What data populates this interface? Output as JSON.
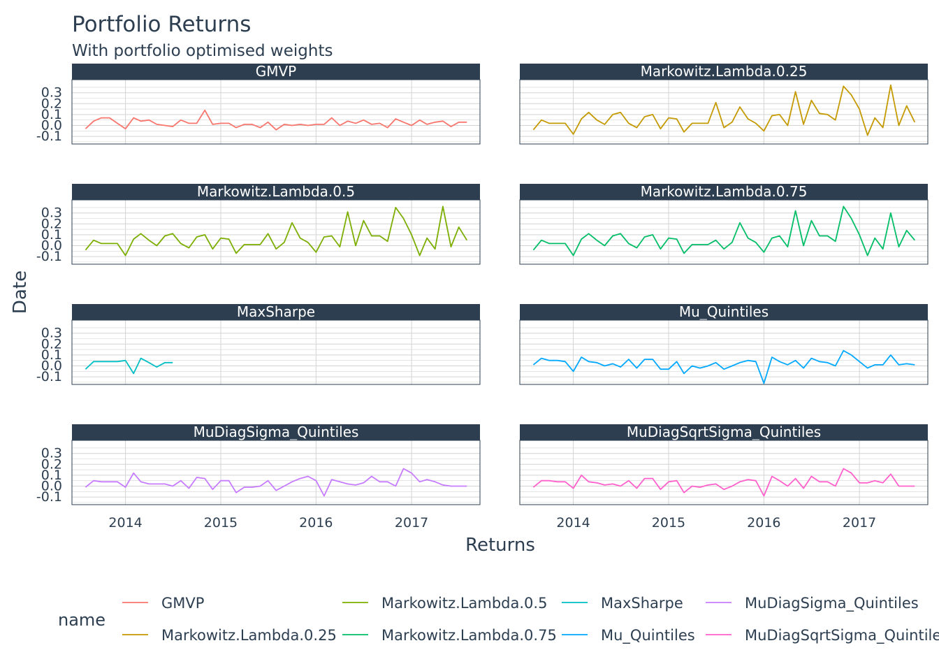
{
  "chart_data": {
    "type": "line",
    "title": "Portfolio Returns",
    "subtitle": "With portfolio optimised weights",
    "xlabel": "Returns",
    "ylabel": "Date",
    "xlim": [
      "2013-06-10",
      "2017-09-20"
    ],
    "ylim": [
      -0.17,
      0.42
    ],
    "x_ticks": [
      "2014",
      "2015",
      "2016",
      "2017"
    ],
    "y_ticks": [
      "0.3",
      "0.2",
      "0.1",
      "0.0",
      "-0.1"
    ],
    "y_tick_values": [
      0.3,
      0.2,
      0.1,
      0.0,
      -0.1
    ],
    "grid": true,
    "legend_title": "name",
    "legend_position": "bottom",
    "x": [
      "2013-08",
      "2013-09",
      "2013-10",
      "2013-11",
      "2013-12",
      "2014-01",
      "2014-02",
      "2014-03",
      "2014-04",
      "2014-05",
      "2014-06",
      "2014-07",
      "2014-08",
      "2014-09",
      "2014-10",
      "2014-11",
      "2014-12",
      "2015-01",
      "2015-02",
      "2015-03",
      "2015-04",
      "2015-05",
      "2015-06",
      "2015-07",
      "2015-08",
      "2015-09",
      "2015-10",
      "2015-11",
      "2015-12",
      "2016-01",
      "2016-02",
      "2016-03",
      "2016-04",
      "2016-05",
      "2016-06",
      "2016-07",
      "2016-08",
      "2016-09",
      "2016-10",
      "2016-11",
      "2016-12",
      "2017-01",
      "2017-02",
      "2017-03",
      "2017-04",
      "2017-05",
      "2017-06",
      "2017-07",
      "2017-08"
    ],
    "series": [
      {
        "name": "GMVP",
        "color": "#F8766D",
        "panel": 0,
        "values": [
          -0.03,
          0.04,
          0.07,
          0.07,
          0.02,
          -0.03,
          0.07,
          0.04,
          0.05,
          0.01,
          0.0,
          -0.01,
          0.05,
          0.02,
          0.02,
          0.14,
          0.01,
          0.02,
          0.02,
          -0.02,
          0.01,
          0.01,
          -0.02,
          0.03,
          -0.04,
          0.01,
          0.0,
          0.01,
          0.0,
          0.01,
          0.01,
          0.07,
          0.0,
          0.04,
          0.02,
          0.05,
          0.01,
          0.02,
          -0.02,
          0.06,
          0.03,
          0.0,
          0.05,
          0.01,
          0.03,
          0.04,
          -0.01,
          0.03,
          0.03
        ]
      },
      {
        "name": "Markowitz.Lambda.0.25",
        "color": "#C49A00",
        "panel": 1,
        "values": [
          -0.04,
          0.05,
          0.02,
          0.02,
          0.02,
          -0.08,
          0.06,
          0.12,
          0.05,
          0.01,
          0.1,
          0.12,
          0.02,
          -0.02,
          0.08,
          0.1,
          -0.03,
          0.07,
          0.06,
          -0.06,
          0.02,
          0.02,
          0.02,
          0.21,
          -0.02,
          0.03,
          0.17,
          0.06,
          0.02,
          -0.05,
          0.09,
          0.1,
          0.0,
          0.31,
          0.01,
          0.23,
          0.11,
          0.1,
          0.05,
          0.36,
          0.28,
          0.15,
          -0.09,
          0.07,
          -0.02,
          0.37,
          0.0,
          0.18,
          0.03
        ]
      },
      {
        "name": "Markowitz.Lambda.0.5",
        "color": "#7CAE00",
        "panel": 2,
        "values": [
          -0.04,
          0.05,
          0.02,
          0.02,
          0.02,
          -0.09,
          0.06,
          0.11,
          0.05,
          0.0,
          0.09,
          0.11,
          0.02,
          -0.02,
          0.08,
          0.1,
          -0.03,
          0.07,
          0.06,
          -0.07,
          0.01,
          0.01,
          0.01,
          0.11,
          -0.03,
          0.03,
          0.21,
          0.07,
          0.03,
          -0.06,
          0.08,
          0.09,
          -0.01,
          0.31,
          0.0,
          0.23,
          0.09,
          0.09,
          0.04,
          0.35,
          0.25,
          0.1,
          -0.09,
          0.07,
          -0.03,
          0.36,
          -0.01,
          0.17,
          0.05
        ]
      },
      {
        "name": "Markowitz.Lambda.0.75",
        "color": "#00BE67",
        "panel": 3,
        "values": [
          -0.04,
          0.05,
          0.02,
          0.02,
          0.02,
          -0.09,
          0.06,
          0.11,
          0.05,
          0.0,
          0.09,
          0.11,
          0.02,
          -0.02,
          0.08,
          0.1,
          -0.03,
          0.07,
          0.06,
          -0.07,
          0.01,
          0.01,
          0.01,
          0.05,
          -0.03,
          0.03,
          0.21,
          0.07,
          0.03,
          -0.06,
          0.07,
          0.09,
          -0.01,
          0.32,
          0.0,
          0.23,
          0.09,
          0.09,
          0.04,
          0.36,
          0.25,
          0.1,
          -0.09,
          0.07,
          -0.03,
          0.3,
          -0.01,
          0.14,
          0.05
        ]
      },
      {
        "name": "MaxSharpe",
        "color": "#00BFC4",
        "panel": 4,
        "values": [
          -0.03,
          0.04,
          0.04,
          0.04,
          0.04,
          0.05,
          -0.07,
          0.07,
          0.03,
          -0.01,
          0.03,
          0.03,
          null,
          null,
          null,
          null,
          null,
          null,
          null,
          null,
          null,
          null,
          null,
          null,
          null,
          null,
          null,
          null,
          null,
          null,
          null,
          null,
          null,
          null,
          null,
          null,
          null,
          null,
          null,
          null,
          null,
          null,
          null,
          null,
          null,
          null,
          null,
          null,
          null
        ]
      },
      {
        "name": "Mu_Quintiles",
        "color": "#00A9FF",
        "panel": 5,
        "values": [
          0.01,
          0.07,
          0.05,
          0.05,
          0.04,
          -0.05,
          0.08,
          0.04,
          0.03,
          0.0,
          0.02,
          -0.01,
          0.06,
          -0.02,
          0.06,
          0.06,
          -0.03,
          -0.03,
          0.04,
          -0.07,
          0.0,
          -0.02,
          0.0,
          0.03,
          -0.03,
          0.0,
          0.03,
          0.05,
          0.04,
          -0.16,
          0.08,
          0.04,
          0.01,
          0.05,
          -0.02,
          0.07,
          0.04,
          0.03,
          0.0,
          0.14,
          0.1,
          0.04,
          -0.02,
          0.01,
          0.01,
          0.1,
          0.01,
          0.02,
          0.01
        ]
      },
      {
        "name": "MuDiagSigma_Quintiles",
        "color": "#C77CFF",
        "panel": 6,
        "values": [
          -0.01,
          0.05,
          0.04,
          0.04,
          0.04,
          -0.01,
          0.12,
          0.04,
          0.02,
          0.02,
          0.02,
          0.0,
          0.05,
          -0.02,
          0.08,
          0.07,
          -0.03,
          0.05,
          0.05,
          -0.06,
          -0.01,
          -0.01,
          0.0,
          0.05,
          -0.04,
          0.0,
          0.04,
          0.07,
          0.09,
          0.05,
          -0.09,
          0.06,
          0.04,
          0.02,
          0.01,
          0.03,
          0.09,
          0.04,
          0.04,
          0.0,
          0.16,
          0.12,
          0.04,
          0.06,
          0.04,
          0.01,
          0.0,
          0.0,
          0.0
        ]
      },
      {
        "name": "MuDiagSqrtSigma_Quintiles",
        "color": "#FF61CC",
        "panel": 7,
        "values": [
          -0.01,
          0.05,
          0.05,
          0.04,
          0.04,
          -0.02,
          0.1,
          0.04,
          0.03,
          0.01,
          0.02,
          0.0,
          0.05,
          -0.02,
          0.07,
          0.07,
          -0.03,
          0.04,
          0.05,
          -0.06,
          0.0,
          -0.01,
          0.01,
          0.02,
          -0.03,
          0.0,
          0.04,
          0.06,
          0.05,
          -0.09,
          0.09,
          0.05,
          0.0,
          0.07,
          -0.02,
          0.09,
          0.04,
          0.04,
          0.0,
          0.16,
          0.12,
          0.03,
          0.03,
          0.05,
          0.03,
          0.11,
          0.0,
          0.0,
          0.0
        ]
      }
    ],
    "panels": [
      "GMVP",
      "Markowitz.Lambda.0.25",
      "Markowitz.Lambda.0.5",
      "Markowitz.Lambda.0.75",
      "MaxSharpe",
      "Mu_Quintiles",
      "MuDiagSigma_Quintiles",
      "MuDiagSqrtSigma_Quintiles"
    ],
    "panel_strip_labels": [
      "GMVP",
      "Markowitz.Lambda.0.25",
      "Markowitz.Lambda.0.5",
      "Markowitz.Lambda.0.75",
      "MaxSharpe",
      "Mu_Quintiles",
      "MuDiagSigma_Quintiles",
      "MuDiagSqrtSigma_Quintiles"
    ],
    "legend_entries": [
      "GMVP",
      "Markowitz.Lambda.0.5",
      "MaxSharpe",
      "MuDiagSigma_Quintiles",
      "Markowitz.Lambda.0.25",
      "Markowitz.Lambda.0.75",
      "Mu_Quintiles",
      "MuDiagSqrtSigma_Quintiles"
    ]
  },
  "theme": {
    "strip_bg": "#2c3e50",
    "text": "#2c3e50",
    "grid": "#d3d3d3",
    "panel_border": "#2c3e50"
  }
}
